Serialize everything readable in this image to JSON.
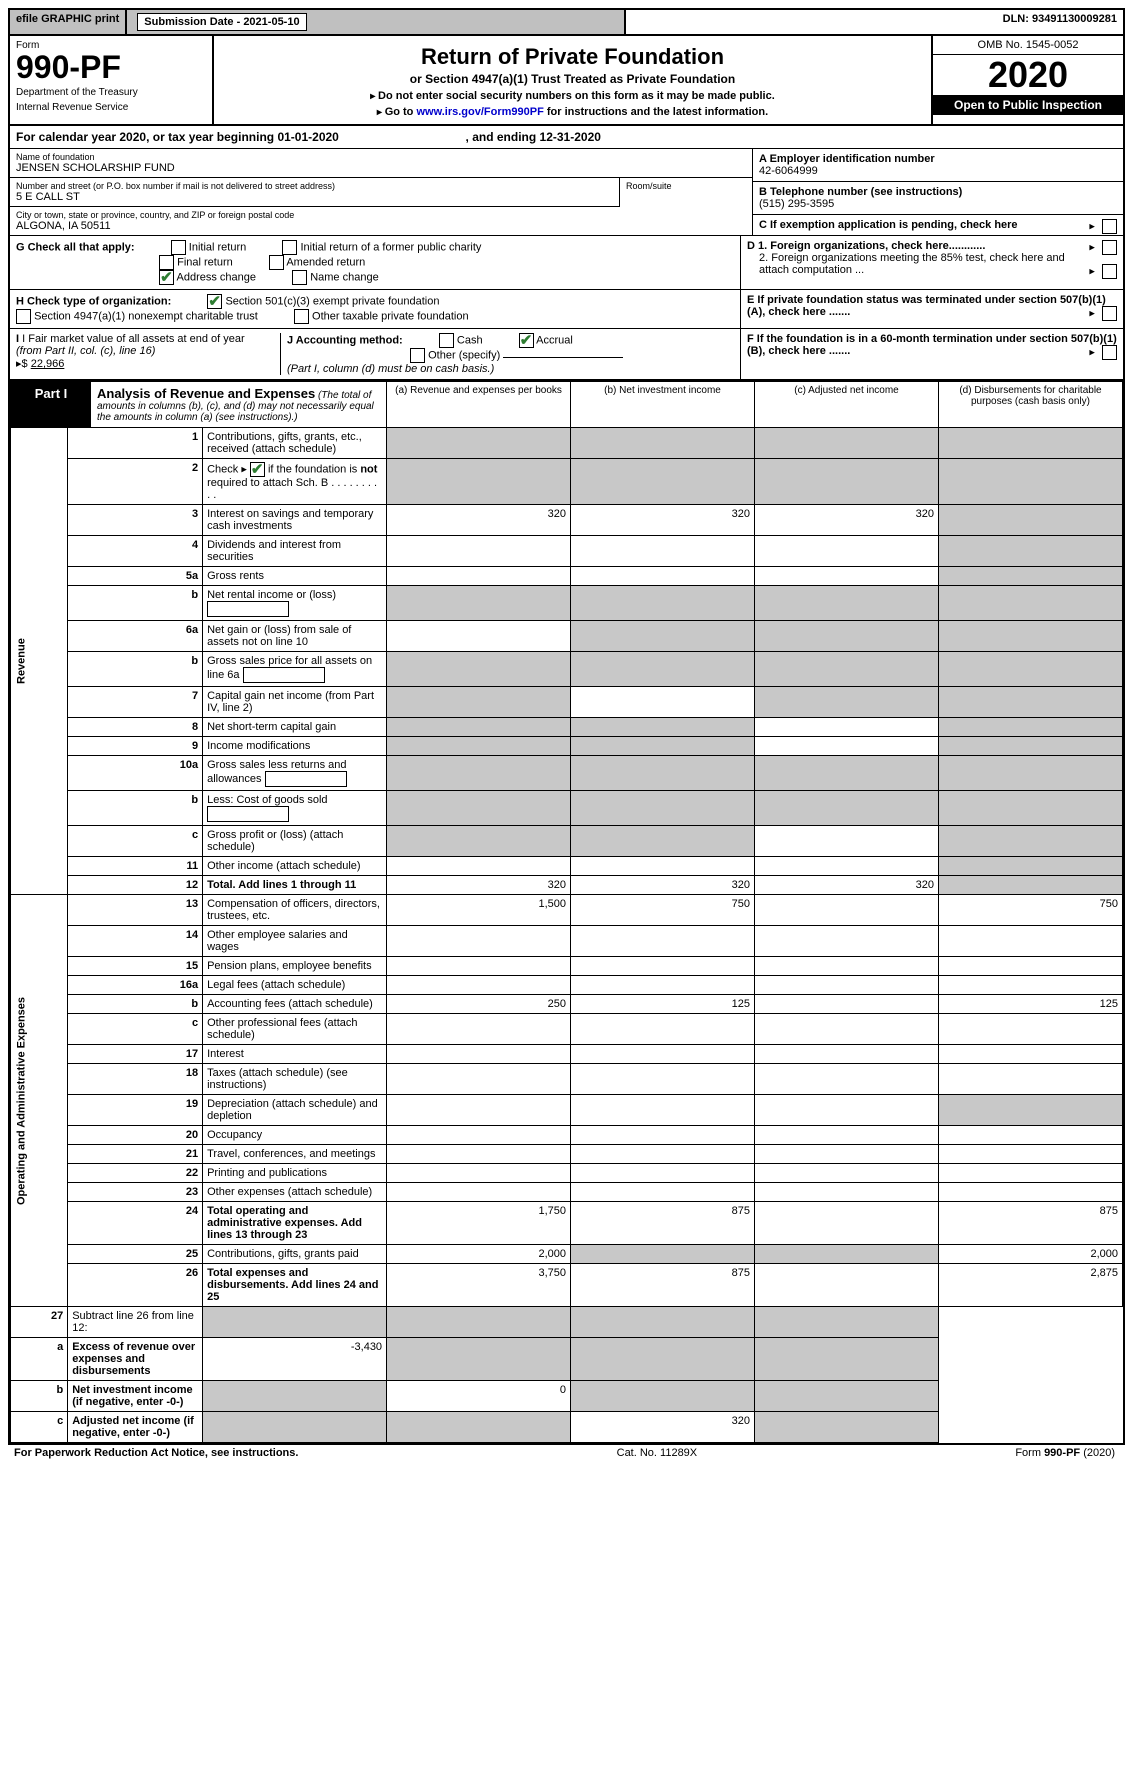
{
  "topbar": {
    "efile": "efile GRAPHIC print",
    "subdate_label": "Submission Date - 2021-05-10",
    "dln": "DLN: 93491130009281"
  },
  "header": {
    "form_word": "Form",
    "form_num": "990-PF",
    "dept": "Department of the Treasury",
    "irs": "Internal Revenue Service",
    "title": "Return of Private Foundation",
    "subtitle": "or Section 4947(a)(1) Trust Treated as Private Foundation",
    "instr1": "Do not enter social security numbers on this form as it may be made public.",
    "instr2_pre": "Go to ",
    "instr2_link": "www.irs.gov/Form990PF",
    "instr2_post": " for instructions and the latest information.",
    "omb": "OMB No. 1545-0052",
    "year": "2020",
    "open": "Open to Public Inspection"
  },
  "calendar": {
    "pre": "For calendar year 2020, or tax year beginning ",
    "begin": "01-01-2020",
    "mid": " , and ending ",
    "end": "12-31-2020"
  },
  "foundation": {
    "name_label": "Name of foundation",
    "name": "JENSEN SCHOLARSHIP FUND",
    "addr_label": "Number and street (or P.O. box number if mail is not delivered to street address)",
    "addr": "5 E CALL ST",
    "room_label": "Room/suite",
    "city_label": "City or town, state or province, country, and ZIP or foreign postal code",
    "city": "ALGONA, IA  50511"
  },
  "right_info": {
    "a_label": "A Employer identification number",
    "a_val": "42-6064999",
    "b_label": "B Telephone number (see instructions)",
    "b_val": "(515) 295-3595",
    "c_label": "C  If exemption application is pending, check here",
    "d1": "D 1. Foreign organizations, check here............",
    "d2": "2. Foreign organizations meeting the 85% test, check here and attach computation ...",
    "e_label": "E  If private foundation status was terminated under section 507(b)(1)(A), check here .......",
    "f_label": "F  If the foundation is in a 60-month termination under section 507(b)(1)(B), check here ......."
  },
  "g": {
    "label": "G Check all that apply:",
    "opts": [
      "Initial return",
      "Initial return of a former public charity",
      "Final return",
      "Amended return",
      "Address change",
      "Name change"
    ]
  },
  "h": {
    "label": "H Check type of organization:",
    "opt1": "Section 501(c)(3) exempt private foundation",
    "opt2": "Section 4947(a)(1) nonexempt charitable trust",
    "opt3": "Other taxable private foundation"
  },
  "i": {
    "label_pre": "I Fair market value of all assets at end of year ",
    "label_mid": "(from Part II, col. (c), line 16)",
    "arrow": "▸$",
    "value": "22,966"
  },
  "j": {
    "label": "J Accounting method:",
    "cash": "Cash",
    "accrual": "Accrual",
    "other": "Other (specify)",
    "note": "(Part I, column (d) must be on cash basis.)"
  },
  "part1": {
    "label": "Part I",
    "title": "Analysis of Revenue and Expenses",
    "note": " (The total of amounts in columns (b), (c), and (d) may not necessarily equal the amounts in column (a) (see instructions).)",
    "col_a": "(a) Revenue and expenses per books",
    "col_b": "(b) Net investment income",
    "col_c": "(c) Adjusted net income",
    "col_d": "(d) Disbursements for charitable purposes (cash basis only)"
  },
  "sections": {
    "revenue": "Revenue",
    "expenses": "Operating and Administrative Expenses"
  },
  "rows": [
    {
      "n": "1",
      "d": "Contributions, gifts, grants, etc., received (attach schedule)",
      "a": "",
      "b": "",
      "c": "",
      "da": "",
      "ga": true,
      "gb": true,
      "gc": true,
      "gd": true
    },
    {
      "n": "2",
      "d": "Check ▸ ☑ if the foundation is not required to attach Sch. B",
      "desc2": true,
      "ga": true,
      "gb": true,
      "gc": true,
      "gd": true
    },
    {
      "n": "3",
      "d": "Interest on savings and temporary cash investments",
      "a": "320",
      "b": "320",
      "c": "320",
      "gd": true
    },
    {
      "n": "4",
      "d": "Dividends and interest from securities",
      "gd": true
    },
    {
      "n": "5a",
      "d": "Gross rents",
      "gd": true
    },
    {
      "n": "b",
      "d": "Net rental income or (loss)",
      "inline_box": true,
      "ga": true,
      "gb": true,
      "gc": true,
      "gd": true
    },
    {
      "n": "6a",
      "d": "Net gain or (loss) from sale of assets not on line 10",
      "gb": true,
      "gc": true,
      "gd": true
    },
    {
      "n": "b",
      "d": "Gross sales price for all assets on line 6a",
      "inline_box": true,
      "ga": true,
      "gb": true,
      "gc": true,
      "gd": true
    },
    {
      "n": "7",
      "d": "Capital gain net income (from Part IV, line 2)",
      "ga": true,
      "gc": true,
      "gd": true
    },
    {
      "n": "8",
      "d": "Net short-term capital gain",
      "ga": true,
      "gb": true,
      "gd": true
    },
    {
      "n": "9",
      "d": "Income modifications",
      "ga": true,
      "gb": true,
      "gd": true
    },
    {
      "n": "10a",
      "d": "Gross sales less returns and allowances",
      "inline_box": true,
      "ga": true,
      "gb": true,
      "gc": true,
      "gd": true
    },
    {
      "n": "b",
      "d": "Less: Cost of goods sold",
      "inline_box": true,
      "ga": true,
      "gb": true,
      "gc": true,
      "gd": true
    },
    {
      "n": "c",
      "d": "Gross profit or (loss) (attach schedule)",
      "ga": true,
      "gb": true,
      "gd": true
    },
    {
      "n": "11",
      "d": "Other income (attach schedule)",
      "gd": true
    },
    {
      "n": "12",
      "d": "Total. Add lines 1 through 11",
      "bold": true,
      "a": "320",
      "b": "320",
      "c": "320",
      "gd": true
    }
  ],
  "exp_rows": [
    {
      "n": "13",
      "d": "Compensation of officers, directors, trustees, etc.",
      "a": "1,500",
      "b": "750",
      "da": "750"
    },
    {
      "n": "14",
      "d": "Other employee salaries and wages"
    },
    {
      "n": "15",
      "d": "Pension plans, employee benefits"
    },
    {
      "n": "16a",
      "d": "Legal fees (attach schedule)"
    },
    {
      "n": "b",
      "d": "Accounting fees (attach schedule)",
      "a": "250",
      "b": "125",
      "da": "125"
    },
    {
      "n": "c",
      "d": "Other professional fees (attach schedule)"
    },
    {
      "n": "17",
      "d": "Interest"
    },
    {
      "n": "18",
      "d": "Taxes (attach schedule) (see instructions)"
    },
    {
      "n": "19",
      "d": "Depreciation (attach schedule) and depletion",
      "gd": true
    },
    {
      "n": "20",
      "d": "Occupancy"
    },
    {
      "n": "21",
      "d": "Travel, conferences, and meetings"
    },
    {
      "n": "22",
      "d": "Printing and publications"
    },
    {
      "n": "23",
      "d": "Other expenses (attach schedule)"
    },
    {
      "n": "24",
      "d": "Total operating and administrative expenses. Add lines 13 through 23",
      "bold": true,
      "a": "1,750",
      "b": "875",
      "da": "875"
    },
    {
      "n": "25",
      "d": "Contributions, gifts, grants paid",
      "a": "2,000",
      "gb": true,
      "gc": true,
      "da": "2,000"
    },
    {
      "n": "26",
      "d": "Total expenses and disbursements. Add lines 24 and 25",
      "bold": true,
      "a": "3,750",
      "b": "875",
      "da": "2,875"
    }
  ],
  "bottom_rows": [
    {
      "n": "27",
      "d": "Subtract line 26 from line 12:",
      "ga": true,
      "gb": true,
      "gc": true,
      "gd": true
    },
    {
      "n": "a",
      "d": "Excess of revenue over expenses and disbursements",
      "bold": true,
      "a": "-3,430",
      "gb": true,
      "gc": true,
      "gd": true
    },
    {
      "n": "b",
      "d": "Net investment income (if negative, enter -0-)",
      "bold": true,
      "ga": true,
      "b": "0",
      "gc": true,
      "gd": true
    },
    {
      "n": "c",
      "d": "Adjusted net income (if negative, enter -0-)",
      "bold": true,
      "ga": true,
      "gb": true,
      "c": "320",
      "gd": true
    }
  ],
  "footer": {
    "left": "For Paperwork Reduction Act Notice, see instructions.",
    "mid": "Cat. No. 11289X",
    "right": "Form 990-PF (2020)"
  }
}
